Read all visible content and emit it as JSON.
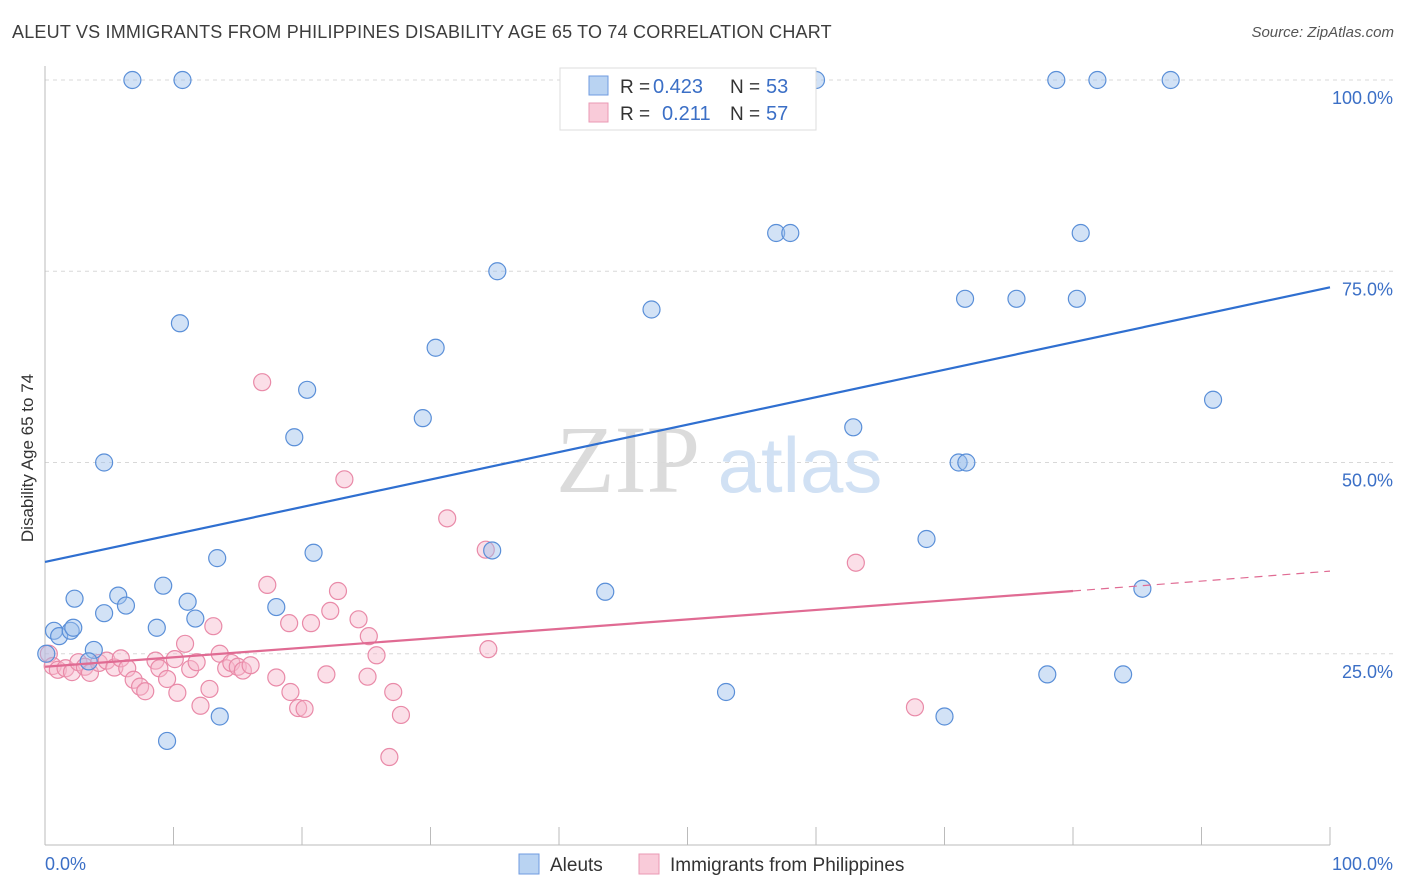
{
  "title": "ALEUT VS IMMIGRANTS FROM PHILIPPINES DISABILITY AGE 65 TO 74 CORRELATION CHART",
  "source": "Source: ZipAtlas.com",
  "watermark": {
    "zip": "ZIP",
    "atlas": "atlas"
  },
  "chart_data": {
    "type": "scatter",
    "title": "ALEUT VS IMMIGRANTS FROM PHILIPPINES DISABILITY AGE 65 TO 74 CORRELATION CHART",
    "xlabel": "",
    "ylabel": "Disability Age 65 to 74",
    "xlim": [
      0,
      100
    ],
    "ylim": [
      0,
      100
    ],
    "x_tick_labels": [
      "0.0%",
      "100.0%"
    ],
    "y_tick_labels": [
      "25.0%",
      "50.0%",
      "75.0%",
      "100.0%"
    ],
    "y_ticks": [
      25,
      50,
      75,
      100
    ],
    "grid": true,
    "legend_placement": "top-center",
    "series": [
      {
        "name": "Aleuts",
        "color": "#9bbfea",
        "stroke": "#5a8fd8",
        "R": "0.423",
        "N": "53",
        "trend": {
          "x": [
            0,
            100
          ],
          "y": [
            37.0,
            72.9
          ],
          "color": "#2f6fd0"
        },
        "points": [
          [
            6.8,
            100
          ],
          [
            10.7,
            100
          ],
          [
            55.6,
            100
          ],
          [
            60.0,
            100
          ],
          [
            78.7,
            100
          ],
          [
            81.9,
            100
          ],
          [
            87.6,
            100
          ],
          [
            56.9,
            80
          ],
          [
            58.0,
            80
          ],
          [
            80.6,
            80
          ],
          [
            35.2,
            75
          ],
          [
            10.5,
            68.2
          ],
          [
            47.2,
            70
          ],
          [
            71.6,
            71.4
          ],
          [
            75.6,
            71.4
          ],
          [
            80.3,
            71.4
          ],
          [
            30.4,
            65
          ],
          [
            20.4,
            59.5
          ],
          [
            90.9,
            58.2
          ],
          [
            29.4,
            55.8
          ],
          [
            62.9,
            54.6
          ],
          [
            19.4,
            53.3
          ],
          [
            4.6,
            50
          ],
          [
            71.1,
            50
          ],
          [
            71.7,
            50
          ],
          [
            13.4,
            37.5
          ],
          [
            20.9,
            38.2
          ],
          [
            34.8,
            38.5
          ],
          [
            68.6,
            40
          ],
          [
            2.3,
            32.2
          ],
          [
            5.7,
            32.6
          ],
          [
            9.2,
            33.9
          ],
          [
            11.1,
            31.8
          ],
          [
            6.3,
            31.3
          ],
          [
            4.6,
            30.3
          ],
          [
            8.7,
            28.4
          ],
          [
            18.0,
            31.1
          ],
          [
            11.7,
            29.6
          ],
          [
            43.6,
            33.1
          ],
          [
            85.4,
            33.5
          ],
          [
            0.7,
            28.0
          ],
          [
            1.1,
            27.3
          ],
          [
            2.0,
            28.0
          ],
          [
            2.2,
            28.4
          ],
          [
            3.8,
            25.5
          ],
          [
            3.4,
            24.0
          ],
          [
            53.0,
            20.0
          ],
          [
            78.0,
            22.3
          ],
          [
            83.9,
            22.3
          ],
          [
            13.6,
            16.8
          ],
          [
            70.0,
            16.8
          ],
          [
            9.5,
            13.6
          ],
          [
            0.1,
            25.0
          ]
        ]
      },
      {
        "name": "Immigrants from Philippines",
        "color": "#f6b9cc",
        "stroke": "#e98aa8",
        "R": "0.211",
        "N": "57",
        "trend": {
          "x": [
            0,
            80
          ],
          "y": [
            23.3,
            33.2
          ],
          "dash_x": [
            80,
            100
          ],
          "dash_y": [
            33.2,
            35.8
          ],
          "color": "#e06b93"
        },
        "points": [
          [
            16.9,
            60.5
          ],
          [
            23.3,
            47.8
          ],
          [
            31.3,
            42.7
          ],
          [
            34.3,
            38.6
          ],
          [
            63.1,
            36.9
          ],
          [
            17.3,
            34.0
          ],
          [
            22.8,
            33.2
          ],
          [
            22.2,
            30.6
          ],
          [
            24.4,
            29.5
          ],
          [
            19.0,
            29.0
          ],
          [
            20.7,
            29.0
          ],
          [
            13.1,
            28.6
          ],
          [
            25.2,
            27.3
          ],
          [
            10.9,
            26.3
          ],
          [
            34.5,
            25.6
          ],
          [
            13.6,
            25.0
          ],
          [
            25.8,
            24.8
          ],
          [
            0.3,
            25.0
          ],
          [
            0.6,
            23.4
          ],
          [
            1.0,
            22.9
          ],
          [
            1.6,
            23.1
          ],
          [
            2.1,
            22.6
          ],
          [
            2.6,
            23.9
          ],
          [
            3.1,
            23.3
          ],
          [
            3.5,
            22.5
          ],
          [
            4.2,
            23.8
          ],
          [
            4.8,
            24.1
          ],
          [
            5.4,
            23.2
          ],
          [
            5.9,
            24.4
          ],
          [
            6.4,
            23.1
          ],
          [
            6.9,
            21.6
          ],
          [
            7.4,
            20.7
          ],
          [
            7.8,
            20.1
          ],
          [
            8.6,
            24.1
          ],
          [
            8.9,
            23.1
          ],
          [
            9.5,
            21.7
          ],
          [
            10.1,
            24.3
          ],
          [
            10.3,
            19.9
          ],
          [
            11.3,
            23.0
          ],
          [
            11.8,
            23.9
          ],
          [
            12.1,
            18.2
          ],
          [
            12.8,
            20.4
          ],
          [
            14.1,
            23.1
          ],
          [
            14.5,
            23.8
          ],
          [
            15.0,
            23.3
          ],
          [
            15.4,
            22.8
          ],
          [
            16.0,
            23.5
          ],
          [
            18.0,
            21.9
          ],
          [
            19.1,
            20.0
          ],
          [
            19.7,
            17.9
          ],
          [
            20.2,
            17.8
          ],
          [
            21.9,
            22.3
          ],
          [
            25.1,
            22.0
          ],
          [
            27.1,
            20.0
          ],
          [
            27.7,
            17.0
          ],
          [
            26.8,
            11.5
          ],
          [
            67.7,
            18.0
          ]
        ]
      }
    ]
  }
}
